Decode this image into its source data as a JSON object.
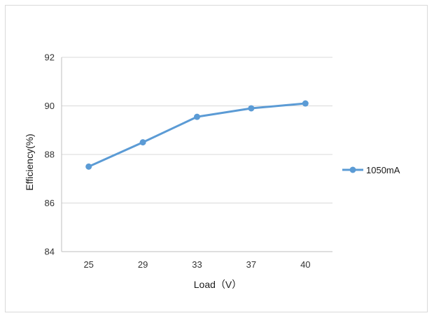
{
  "chart_data": {
    "type": "line",
    "categories": [
      "25",
      "29",
      "33",
      "37",
      "40"
    ],
    "series": [
      {
        "name": "1050mA",
        "values": [
          87.5,
          88.5,
          89.55,
          89.9,
          90.1
        ]
      }
    ],
    "title": "",
    "xlabel": "Load（V）",
    "ylabel": "Efficiency(%)",
    "ylim": [
      84,
      92
    ],
    "yticks": [
      "84",
      "86",
      "88",
      "90",
      "92"
    ],
    "grid": true,
    "legend_position": "right",
    "colors": {
      "series": "#5b9bd5",
      "grid": "#d9d9d9",
      "axis": "#bfbfbf",
      "text": "#333333"
    }
  }
}
